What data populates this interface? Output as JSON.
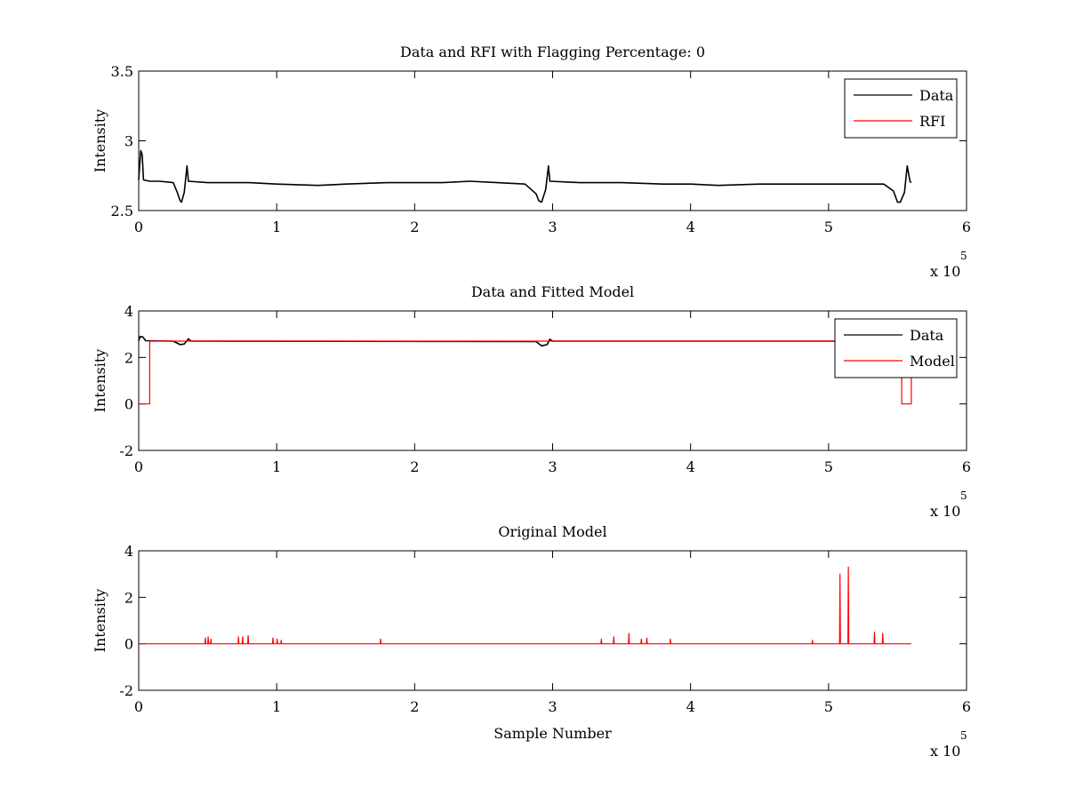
{
  "chart_data": [
    {
      "type": "line",
      "title": "Data and RFI with Flagging Percentage: 0",
      "xlabel": "",
      "ylabel": "Intensity",
      "xlim": [
        0,
        6
      ],
      "ylim": [
        2.5,
        3.5
      ],
      "x_ticks": [
        "0",
        "1",
        "2",
        "3",
        "4",
        "5",
        "6"
      ],
      "y_ticks": [
        "2.5",
        "3",
        "3.5"
      ],
      "x_multiplier": "x 10",
      "x_exponent": "5",
      "legend_position": "top-right",
      "grid": false,
      "series": [
        {
          "name": "Data",
          "color": "#000000",
          "points": [
            [
              0,
              2.72
            ],
            [
              0.005,
              2.8
            ],
            [
              0.015,
              2.93
            ],
            [
              0.025,
              2.9
            ],
            [
              0.035,
              2.72
            ],
            [
              0.08,
              2.71
            ],
            [
              0.15,
              2.71
            ],
            [
              0.25,
              2.7
            ],
            [
              0.28,
              2.63
            ],
            [
              0.3,
              2.57
            ],
            [
              0.31,
              2.56
            ],
            [
              0.33,
              2.63
            ],
            [
              0.35,
              2.82
            ],
            [
              0.36,
              2.71
            ],
            [
              0.5,
              2.7
            ],
            [
              0.8,
              2.7
            ],
            [
              1.0,
              2.69
            ],
            [
              1.3,
              2.68
            ],
            [
              1.5,
              2.69
            ],
            [
              1.8,
              2.7
            ],
            [
              2.0,
              2.7
            ],
            [
              2.2,
              2.7
            ],
            [
              2.4,
              2.71
            ],
            [
              2.6,
              2.7
            ],
            [
              2.8,
              2.69
            ],
            [
              2.88,
              2.62
            ],
            [
              2.9,
              2.57
            ],
            [
              2.92,
              2.56
            ],
            [
              2.95,
              2.65
            ],
            [
              2.97,
              2.82
            ],
            [
              2.98,
              2.71
            ],
            [
              3.2,
              2.7
            ],
            [
              3.5,
              2.7
            ],
            [
              3.8,
              2.69
            ],
            [
              4.0,
              2.69
            ],
            [
              4.2,
              2.68
            ],
            [
              4.5,
              2.69
            ],
            [
              4.8,
              2.69
            ],
            [
              5.0,
              2.69
            ],
            [
              5.2,
              2.69
            ],
            [
              5.4,
              2.69
            ],
            [
              5.47,
              2.64
            ],
            [
              5.5,
              2.56
            ],
            [
              5.52,
              2.56
            ],
            [
              5.55,
              2.63
            ],
            [
              5.57,
              2.82
            ],
            [
              5.59,
              2.71
            ],
            [
              5.6,
              2.7
            ]
          ]
        },
        {
          "name": "RFI",
          "color": "#ff0000",
          "points": []
        }
      ]
    },
    {
      "type": "line",
      "title": "Data and Fitted Model",
      "xlabel": "",
      "ylabel": "Intensity",
      "xlim": [
        0,
        6
      ],
      "ylim": [
        -2,
        4
      ],
      "x_ticks": [
        "0",
        "1",
        "2",
        "3",
        "4",
        "5",
        "6"
      ],
      "y_ticks": [
        "-2",
        "0",
        "2",
        "4"
      ],
      "x_multiplier": "x 10",
      "x_exponent": "5",
      "legend_position": "top-right",
      "grid": false,
      "series": [
        {
          "name": "Data",
          "color": "#000000",
          "points": [
            [
              0,
              2.72
            ],
            [
              0.01,
              2.9
            ],
            [
              0.03,
              2.88
            ],
            [
              0.05,
              2.72
            ],
            [
              0.25,
              2.7
            ],
            [
              0.3,
              2.55
            ],
            [
              0.33,
              2.58
            ],
            [
              0.36,
              2.8
            ],
            [
              0.38,
              2.7
            ],
            [
              2.88,
              2.68
            ],
            [
              2.92,
              2.5
            ],
            [
              2.96,
              2.55
            ],
            [
              2.98,
              2.78
            ],
            [
              3.0,
              2.7
            ],
            [
              5.6,
              2.7
            ]
          ]
        },
        {
          "name": "Model",
          "color": "#ff0000",
          "points": [
            [
              0,
              0
            ],
            [
              0.08,
              0
            ],
            [
              0.08,
              2.7
            ],
            [
              5.53,
              2.7
            ],
            [
              5.53,
              0
            ],
            [
              5.6,
              0
            ],
            [
              5.6,
              2.7
            ]
          ]
        }
      ]
    },
    {
      "type": "line",
      "title": "Original Model",
      "xlabel": "Sample Number",
      "ylabel": "Intensity",
      "xlim": [
        0,
        6
      ],
      "ylim": [
        -2,
        4
      ],
      "x_ticks": [
        "0",
        "1",
        "2",
        "3",
        "4",
        "5",
        "6"
      ],
      "y_ticks": [
        "-2",
        "0",
        "2",
        "4"
      ],
      "x_multiplier": "x 10",
      "x_exponent": "5",
      "legend_position": "none",
      "grid": false,
      "series": [
        {
          "name": "",
          "color": "#ff0000",
          "baseline": 0,
          "x_start": 0,
          "x_end": 5.6,
          "spikes": [
            [
              0.48,
              0.25
            ],
            [
              0.5,
              0.3
            ],
            [
              0.52,
              0.2
            ],
            [
              0.72,
              0.3
            ],
            [
              0.75,
              0.3
            ],
            [
              0.79,
              0.35
            ],
            [
              0.97,
              0.25
            ],
            [
              1.0,
              0.2
            ],
            [
              1.03,
              0.15
            ],
            [
              1.75,
              0.2
            ],
            [
              3.35,
              0.2
            ],
            [
              3.44,
              0.3
            ],
            [
              3.55,
              0.45
            ],
            [
              3.64,
              0.2
            ],
            [
              3.68,
              0.25
            ],
            [
              3.85,
              0.2
            ],
            [
              4.88,
              0.15
            ],
            [
              5.08,
              3.0
            ],
            [
              5.14,
              3.3
            ],
            [
              5.33,
              0.5
            ],
            [
              5.39,
              0.45
            ]
          ]
        }
      ]
    }
  ]
}
